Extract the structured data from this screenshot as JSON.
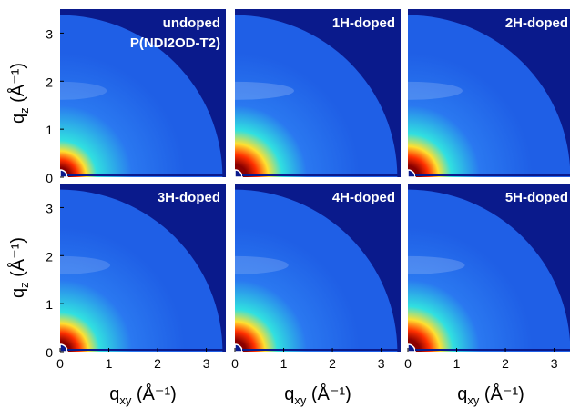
{
  "chart_data": {
    "type": "heatmap",
    "description_of_axes": {
      "xlabel": "q",
      "xlabel_sub": "xy",
      "ylabel": "q",
      "ylabel_sub": "z",
      "unit": " (Å⁻¹)",
      "xlim": [
        0,
        3.4
      ],
      "ylim": [
        0,
        3.5
      ],
      "xticks": [
        "0",
        "1",
        "2",
        "3"
      ],
      "yticks": [
        "0",
        "1",
        "2",
        "3"
      ],
      "xtick_values": [
        0,
        1,
        2,
        3
      ],
      "ytick_values": [
        0,
        1,
        2,
        3
      ]
    },
    "panels": [
      {
        "title_lines": [
          "undoped",
          "P(NDI2OD-T2)"
        ],
        "intensity": 0.45
      },
      {
        "title_lines": [
          "1H-doped"
        ],
        "intensity": 1.0
      },
      {
        "title_lines": [
          "2H-doped"
        ],
        "intensity": 0.8
      },
      {
        "title_lines": [
          "3H-doped"
        ],
        "intensity": 0.6
      },
      {
        "title_lines": [
          "4H-doped"
        ],
        "intensity": 0.75
      },
      {
        "title_lines": [
          "5H-doped"
        ],
        "intensity": 0.9
      }
    ],
    "colors": {
      "background": "#0a1a8c",
      "field": "#1f5fe6",
      "field_far": "#2a78f0",
      "hot": "#8a0000",
      "warm": "#ff3000",
      "yellow": "#ffe030",
      "cyan": "#30e0e0",
      "label": "#ffffff",
      "axis": "#000000"
    }
  }
}
